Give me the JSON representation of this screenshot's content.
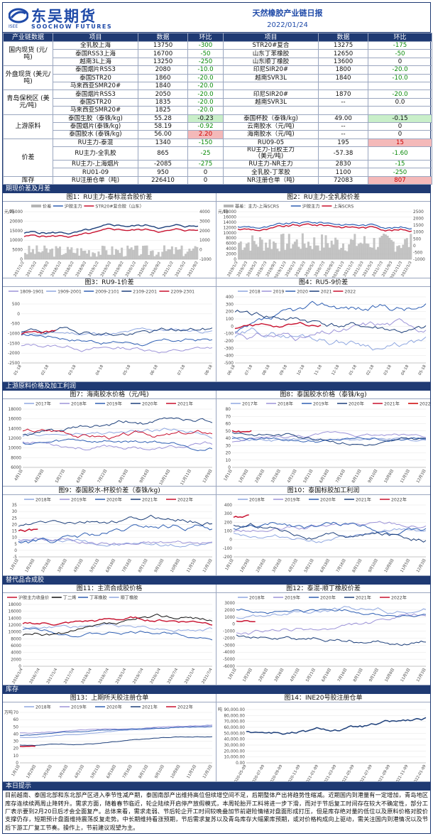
{
  "header": {
    "logo_cn": "东吴期货",
    "logo_en": "SOOCHOW FUTURES",
    "logo_small": "ISEE",
    "title": "天然橡胶产业链日报",
    "date": "2022/01/24"
  },
  "table": {
    "head": [
      "产业链数据",
      "项目",
      "数据",
      "环比",
      "项目",
      "数据",
      "环比"
    ],
    "groups": [
      {
        "category": "国内现货\n(元/吨)",
        "rows": [
          [
            "全乳胶上海",
            "13750",
            "-300",
            "STR20#复合",
            "13275",
            "-175"
          ],
          [
            "泰国RSS3上海",
            "16700",
            "-50",
            "山东丁苯橡胶",
            "12650",
            "-50"
          ],
          [
            "越南3L上海",
            "13250",
            "-250",
            "山东顺丁橡胶",
            "13600",
            "0"
          ]
        ]
      },
      {
        "category": "外盘现货\n(美元/吨)",
        "rows": [
          [
            "泰国烟片RSS3",
            "2080",
            "-10.0",
            "印尼SIR20#",
            "1800",
            "-20.0"
          ],
          [
            "泰国STR20",
            "1860",
            "-20.0",
            "越南SVR3L",
            "1840",
            "-10.0"
          ],
          [
            "马来西亚SMR20#",
            "1840",
            "-20.0",
            "",
            "",
            ""
          ]
        ]
      },
      {
        "category": "青岛保税区\n(美元/吨)",
        "rows": [
          [
            "泰国烟片RSS3",
            "2050",
            "-20.0",
            "印尼SIR20#",
            "1870",
            "-20.0"
          ],
          [
            "泰国STR20",
            "1835",
            "-20.0",
            "越南SVR3L",
            "--",
            "0.0"
          ],
          [
            "马来西亚SMR20#",
            "1825",
            "-20.0",
            "",
            "",
            ""
          ]
        ]
      },
      {
        "category": "上游原料",
        "rows": [
          [
            "泰国生胶（泰铢/kg)",
            "55.28",
            "-0.23",
            "泰国杯胶（泰铢/kg)",
            "49.00",
            "-0.15"
          ],
          [
            "泰国烟片(泰铢/kg)",
            "58.19",
            "-0.92",
            "云南胶水（元/吨)",
            "--",
            "0"
          ],
          [
            "泰国胶水 (泰铢/kg)",
            "56.00",
            "2.20",
            "海南胶水（元/吨)",
            "--",
            "0"
          ]
        ]
      },
      {
        "category": "价差",
        "rows": [
          [
            "RU主力-泰混",
            "1340",
            "-150",
            "RU09-05",
            "195",
            "15"
          ],
          [
            "RU主力-全乳胶",
            "865",
            "-25",
            "RU主力-日胶主力\n(美元/吨)",
            "-57.38",
            "-1.60"
          ],
          [
            "RU主力-上海烟片",
            "-2085",
            "-275",
            "RU主力-NR主力",
            "2830",
            "-15"
          ],
          [
            "RU01-09",
            "950",
            "0",
            "全乳胶-丁苯胶",
            "1100",
            "-250"
          ]
        ]
      },
      {
        "category": "库存",
        "rows": [
          [
            "RU注册仓单（吨)",
            "226410",
            "0",
            "NR注册仓单（吨)",
            "72083",
            "807"
          ]
        ]
      }
    ]
  },
  "sections": {
    "s1": "期现价差及月差",
    "s2": "上游原料价格及加工利润",
    "s3": "替代品合成胶",
    "s4": "库存",
    "s5": "本日提示"
  },
  "charts": {
    "c1": {
      "title": "图1：RU主力-泰标混合胶价差",
      "legend": [
        "价差",
        "沪胶主力",
        "STR20#复合胶（山东）"
      ],
      "ylabel": "元/吨",
      "yl": [
        "25000",
        "20000",
        "15000",
        "10000",
        "5000",
        "0"
      ],
      "yr": [
        "4000",
        "3000",
        "2000",
        "1000",
        "0",
        "-1000"
      ],
      "x": [
        "2017/1/2",
        "2017/5/2",
        "2017/9/2",
        "2018/1/2",
        "2018/5/2",
        "2018/9/2",
        "2019/1/2",
        "2019/5/2",
        "2019/9/2",
        "2020/1/2",
        "2020/5/2",
        "2020/9/2",
        "2021/1/2",
        "2021/5/2",
        "2021/9/2"
      ]
    },
    "c2": {
      "title": "图2：RU主力-全乳胶价差",
      "legend": [
        "基差：主力-上海SCRS",
        "沪胶主力",
        "上海SCRS"
      ],
      "ylabel": "元/吨",
      "yl": [
        "18000",
        "16000",
        "14000",
        "12000",
        "10000",
        "8000",
        "6000",
        "4000",
        "2000",
        "0"
      ],
      "yr": [
        "2500",
        "2000",
        "1500",
        "1000",
        "500",
        "0",
        "-500",
        "-1000"
      ],
      "x": [
        "2019/1/3",
        "2019/3/3",
        "2019/5/3",
        "2019/7/3",
        "2019/9/3",
        "2019/11/3",
        "2020/1/3",
        "2020/3/3",
        "2020/5/3",
        "2020/7/3",
        "2020/9/3",
        "2020/11/3",
        "2021/1/3",
        "2021/3/3",
        "2021/5/3",
        "2021/7/3",
        "2021/9/3",
        "2021/11/3",
        "2022/1/3"
      ]
    },
    "c3": {
      "title": "图3：RU9-1价差",
      "legend": [
        "1809-1901",
        "1909-2001",
        "2009-2101",
        "2109-2201",
        "2209-2301"
      ],
      "yl": [
        "500",
        "0",
        "-500",
        "-1000",
        "-1500",
        "-2000",
        "-2500"
      ],
      "x": [
        "01-18",
        "02-18",
        "03-18",
        "04-18",
        "05-18",
        "06-18",
        "07-18",
        "08-18"
      ]
    },
    "c4": {
      "title": "图4：RU5-9价差",
      "legend": [
        "2018",
        "2019",
        "2020",
        "2021",
        "2022"
      ],
      "yl": [
        "400",
        "300",
        "200",
        "100",
        "0",
        "-100",
        "-200",
        "-300",
        "-400",
        "-500"
      ],
      "x": [
        "06-18",
        "07-18",
        "08-18",
        "09-18",
        "10-18",
        "11-18",
        "12-18",
        "01-18",
        "02-18",
        "03-18",
        "04-18",
        "05-18"
      ]
    },
    "c7": {
      "title": "图7：海南胶水价格（元/吨)",
      "legend": [
        "2017年",
        "2018年",
        "2019年",
        "2020年",
        "2021年"
      ],
      "yl": [
        "18000",
        "16000",
        "14000",
        "12000",
        "10000",
        "8000",
        "6000"
      ],
      "x": [
        "4月1日",
        "4月29日",
        "5月27日",
        "6月24日",
        "7月22日",
        "8月19日",
        "9月16日",
        "10月14日",
        "11月11日",
        "12月9日"
      ]
    },
    "c8": {
      "title": "图8：泰国胶水价格（泰铢/kg)",
      "legend": [
        "2017年",
        "2018年",
        "2019年",
        "2020年",
        "2021年",
        "2022年"
      ],
      "yl": [
        "80",
        "70",
        "60",
        "50",
        "40",
        "30",
        "20",
        "10",
        "0"
      ],
      "x": [
        "1月1日",
        "1月29日",
        "2月26日",
        "3月26日",
        "4月23日",
        "5月21日",
        "6月18日",
        "7月16日",
        "8月13日",
        "9月10日",
        "10月8日",
        "11月5日",
        "12月3日"
      ]
    },
    "c9": {
      "title": "图9：泰国胶水-杯胶价差（泰铢/kg)",
      "legend": [
        "2018年",
        "2019年",
        "2020年",
        "2021年",
        "2022年"
      ],
      "yl": [
        "35",
        "30",
        "25",
        "20",
        "15",
        "10",
        "5",
        "0",
        "-5"
      ],
      "x": [
        "1月1日",
        "1月29日",
        "2月26日",
        "3月26日",
        "4月23日",
        "5月21日",
        "6月18日",
        "7月16日",
        "8月13日",
        "9月10日",
        "10月8日",
        "11月5日",
        "12月3日"
      ]
    },
    "c10": {
      "title": "图10：泰国标胶加工利润",
      "legend": [
        "2018年",
        "2019年",
        "2020年",
        "2021年",
        "2022年"
      ],
      "yl": [
        "400",
        "300",
        "200",
        "100",
        "0",
        "-100",
        "-200"
      ],
      "x": [
        "1月1日",
        "1月29日",
        "2月26日",
        "3月26日",
        "4月23日",
        "5月21日",
        "6月18日",
        "7月16日",
        "8月13日",
        "9月10日",
        "10月8日",
        "11月5日",
        "12月3日"
      ]
    },
    "c11": {
      "title": "图11：主流合成胶价格",
      "legend": [
        "沪胶主力收盘价",
        "丁二烯",
        "丁苯橡胶",
        "顺丁橡胶"
      ],
      "yl": [
        "18000",
        "16000",
        "14000",
        "12000",
        "10000",
        "8000",
        "6000",
        "4000",
        "2000",
        "0"
      ],
      "x": [
        "2016/1/4",
        "2016/7/4",
        "2017/1/4",
        "2017/7/4",
        "2018/1/4",
        "2018/7/4",
        "2019/1/4",
        "2019/7/4",
        "2020/1/4",
        "2020/7/4",
        "2021/1/4",
        "2021/7/4"
      ]
    },
    "c12": {
      "title": "图12：泰混-顺丁橡胶价差",
      "legend": [
        "2018年",
        "2019年",
        "2020年",
        "2021年",
        "2022年"
      ],
      "yl": [
        "3000",
        "2000",
        "1000",
        "0",
        "-1000",
        "-2000",
        "-3000",
        "-4000",
        "-5000",
        "-6000"
      ],
      "x": [
        "1月1日",
        "1月29日",
        "2月26日",
        "3月26日",
        "4月23日",
        "5月21日",
        "6月18日",
        "7月16日",
        "8月13日",
        "9月10日",
        "10月8日",
        "11月5日",
        "12月3日"
      ]
    },
    "c13": {
      "title": "图13：上期所天胶注册仓单",
      "legend": [
        "2018年",
        "2019年",
        "2020年",
        "2021年",
        "2022年"
      ],
      "ylabel": "万吨",
      "yl": [
        "70",
        "60",
        "50",
        "40",
        "30",
        "20",
        "10",
        "0"
      ],
      "x": [
        "1月1日",
        "1月29日",
        "2月26日",
        "3月26日",
        "4月23日",
        "5月21日",
        "6月18日",
        "7月16日",
        "8月13日",
        "9月10日",
        "10月8日",
        "11月5日",
        "12月3日"
      ]
    },
    "c14": {
      "title": "图14：INE20号胶注册仓单",
      "ylabel": "吨",
      "yl": [
        "90,000.00",
        "80,000.00",
        "70,000.00",
        "60,000.00",
        "50,000.00",
        "40,000.00",
        "30,000.00",
        "20,000.00",
        "10,000.00",
        "0.00"
      ],
      "x": [
        "2020-05-09",
        "2020-07-09",
        "2020-09-09",
        "2020-11-09",
        "2021-01-09",
        "2021-03-09",
        "2021-05-09",
        "2021-07-09",
        "2021-09-09",
        "2021-11-09",
        "2022-01-09"
      ]
    }
  },
  "colors": {
    "navy": "#1f3a73",
    "red": "#c8102e",
    "blue": "#2f5fb3",
    "lightblue": "#8fa7e0",
    "darkblue": "#1d3f7a",
    "purple": "#9c93d8",
    "gray": "#b5b5b5",
    "black": "#111111"
  },
  "tip": "目前越南、泰国北部和东北部产区进入季节性减产期，泰国南部产出维持高位但续增空间不足，后期整体产出将趋势性缩减。近期国内到港量有一定增加，青岛地区库存连续续两周止降转升。需求方面，随着春节临近，轮企陆续开启停产放假模式，本周轮胎开工料将进一步下滑，而对于节后复工时间存在较大不确定性，部分工厂表示要到2月20日后才会全面复产。总体来看，需求走弱、节后轮企开工时间较晚叠加节前避险情绪对盘面形成打压，但是库存绝对量的低位以及原料价格对胶价支撑仍存，短期预计盘面维持震荡反复走势。中长期维持看涨预期，节后需求复苏以及青岛库存大幅累库预期，或对价格构成向上驱动，需关注国内到港情况以及节后下游工厂复工节奏。操作上，节前建议观望为主。"
}
